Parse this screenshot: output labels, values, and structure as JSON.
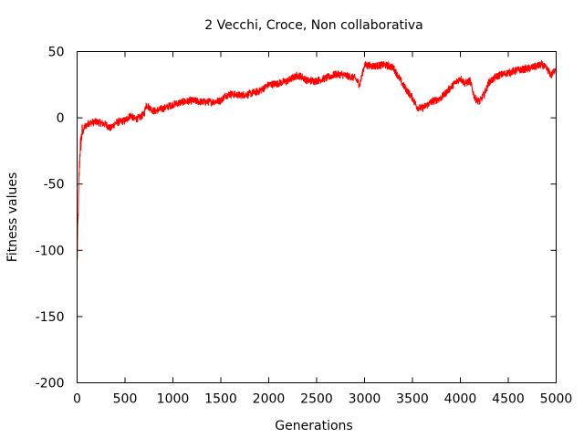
{
  "chart_data": {
    "type": "line",
    "title": "2 Vecchi, Croce, Non collaborativa",
    "xlabel": "Generations",
    "ylabel": "Fitness values",
    "xlim": [
      0,
      5000
    ],
    "ylim": [
      -200,
      50
    ],
    "xticks": [
      0,
      500,
      1000,
      1500,
      2000,
      2500,
      3000,
      3500,
      4000,
      4500,
      5000
    ],
    "yticks": [
      -200,
      -150,
      -100,
      -50,
      0,
      50
    ],
    "grid": false,
    "series": [
      {
        "color": "#ff0000",
        "noise": 3,
        "x": [
          0,
          10,
          20,
          30,
          50,
          80,
          120,
          200,
          300,
          350,
          400,
          500,
          560,
          600,
          650,
          700,
          720,
          800,
          900,
          1000,
          1100,
          1200,
          1300,
          1400,
          1500,
          1550,
          1600,
          1700,
          1800,
          1900,
          2000,
          2100,
          2200,
          2300,
          2350,
          2400,
          2500,
          2600,
          2700,
          2800,
          2900,
          2950,
          3000,
          3100,
          3200,
          3300,
          3400,
          3500,
          3550,
          3600,
          3700,
          3800,
          3900,
          4000,
          4050,
          4100,
          4150,
          4200,
          4250,
          4300,
          4400,
          4500,
          4600,
          4700,
          4800,
          4850,
          4900,
          4950,
          5000
        ],
        "y": [
          -110,
          -75,
          -45,
          -25,
          -12,
          -7,
          -4,
          -3,
          -5,
          -8,
          -4,
          -2,
          2,
          -1,
          0,
          3,
          10,
          5,
          7,
          10,
          12,
          13,
          12,
          12,
          13,
          17,
          18,
          17,
          18,
          20,
          25,
          26,
          28,
          32,
          31,
          28,
          28,
          30,
          33,
          32,
          30,
          25,
          40,
          39,
          40,
          38,
          25,
          15,
          8,
          7,
          12,
          15,
          23,
          30,
          26,
          28,
          15,
          12,
          18,
          27,
          32,
          34,
          36,
          37,
          39,
          40,
          37,
          32,
          38
        ]
      }
    ]
  }
}
